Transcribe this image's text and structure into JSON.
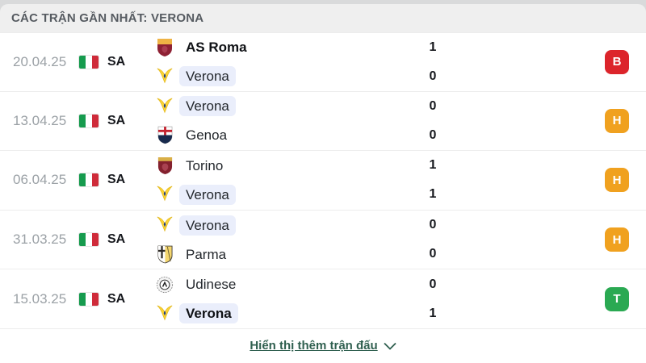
{
  "header": {
    "title": "CÁC TRẬN GẦN NHẤT: VERONA"
  },
  "colors": {
    "win": "#2aa952",
    "draw": "#f0a11f",
    "loss": "#dc242b",
    "team_highlight": "#eaeefb",
    "link": "#2f5f4f"
  },
  "matches": [
    {
      "date": "20.04.25",
      "league": "SA",
      "league_flag": "italy-flag",
      "teams": [
        {
          "name": "AS Roma",
          "crest": "roma",
          "score": "1",
          "winner": true,
          "highlighted": false
        },
        {
          "name": "Verona",
          "crest": "verona",
          "score": "0",
          "winner": false,
          "highlighted": true
        }
      ],
      "result": {
        "letter": "B",
        "type": "loss"
      }
    },
    {
      "date": "13.04.25",
      "league": "SA",
      "league_flag": "italy-flag",
      "teams": [
        {
          "name": "Verona",
          "crest": "verona",
          "score": "0",
          "winner": false,
          "highlighted": true
        },
        {
          "name": "Genoa",
          "crest": "genoa",
          "score": "0",
          "winner": false,
          "highlighted": false
        }
      ],
      "result": {
        "letter": "H",
        "type": "draw"
      }
    },
    {
      "date": "06.04.25",
      "league": "SA",
      "league_flag": "italy-flag",
      "teams": [
        {
          "name": "Torino",
          "crest": "torino",
          "score": "1",
          "winner": false,
          "highlighted": false
        },
        {
          "name": "Verona",
          "crest": "verona",
          "score": "1",
          "winner": false,
          "highlighted": true
        }
      ],
      "result": {
        "letter": "H",
        "type": "draw"
      }
    },
    {
      "date": "31.03.25",
      "league": "SA",
      "league_flag": "italy-flag",
      "teams": [
        {
          "name": "Verona",
          "crest": "verona",
          "score": "0",
          "winner": false,
          "highlighted": true
        },
        {
          "name": "Parma",
          "crest": "parma",
          "score": "0",
          "winner": false,
          "highlighted": false
        }
      ],
      "result": {
        "letter": "H",
        "type": "draw"
      }
    },
    {
      "date": "15.03.25",
      "league": "SA",
      "league_flag": "italy-flag",
      "teams": [
        {
          "name": "Udinese",
          "crest": "udinese",
          "score": "0",
          "winner": false,
          "highlighted": false
        },
        {
          "name": "Verona",
          "crest": "verona",
          "score": "1",
          "winner": true,
          "highlighted": true
        }
      ],
      "result": {
        "letter": "T",
        "type": "win"
      }
    }
  ],
  "footer": {
    "show_more_label": "Hiển thị thêm trận đấu"
  }
}
